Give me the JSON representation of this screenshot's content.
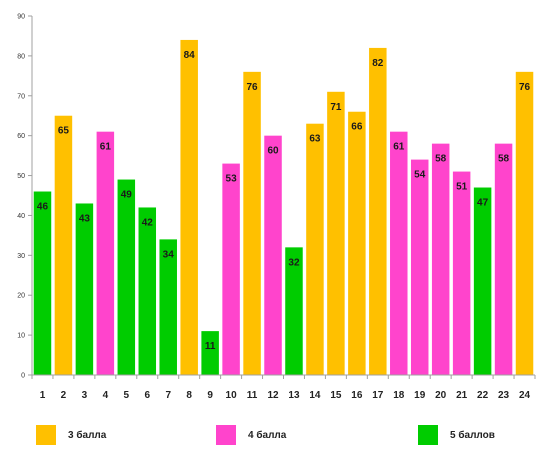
{
  "chart_data": {
    "type": "bar",
    "categories": [
      "1",
      "2",
      "3",
      "4",
      "5",
      "6",
      "7",
      "8",
      "9",
      "10",
      "11",
      "12",
      "13",
      "14",
      "15",
      "16",
      "17",
      "18",
      "19",
      "20",
      "21",
      "22",
      "23",
      "24"
    ],
    "values": [
      46,
      65,
      43,
      61,
      49,
      42,
      34,
      84,
      11,
      53,
      76,
      60,
      32,
      63,
      71,
      66,
      82,
      61,
      54,
      58,
      51,
      47,
      58,
      76
    ],
    "groups": [
      "5 баллов",
      "3 балла",
      "5 баллов",
      "4 балла",
      "5 баллов",
      "5 баллов",
      "5 баллов",
      "3 балла",
      "5 баллов",
      "4 балла",
      "3 балла",
      "4 балла",
      "5 баллов",
      "3 балла",
      "3 балла",
      "3 балла",
      "3 балла",
      "4 балла",
      "4 балла",
      "4 балла",
      "4 балла",
      "5 баллов",
      "4 балла",
      "3 балла"
    ],
    "ylim": [
      0,
      90
    ],
    "yticks": [
      0,
      10,
      20,
      30,
      40,
      50,
      60,
      70,
      80,
      90
    ],
    "grid": false,
    "legend_position": "bottom",
    "title": "",
    "xlabel": "",
    "ylabel": ""
  },
  "legend": [
    {
      "label": "3 балла",
      "color": "#ffc000"
    },
    {
      "label": "4 балла",
      "color": "#ff44cc"
    },
    {
      "label": "5 баллов",
      "color": "#00cc00"
    }
  ],
  "colors": {
    "3 балла": "#ffc000",
    "4 балла": "#ff44cc",
    "5 баллов": "#00cc00",
    "axis": "#a0a0a0"
  }
}
